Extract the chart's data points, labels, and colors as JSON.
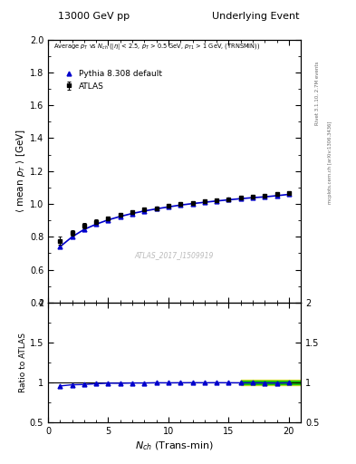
{
  "title_left": "13000 GeV pp",
  "title_right": "Underlying Event",
  "ylabel_main": "\\langle mean p_{T} \\rangle [GeV]",
  "ylabel_ratio": "Ratio to ATLAS",
  "xlabel": "N_{ch} (Trans-min)",
  "watermark": "ATLAS_2017_I1509919",
  "right_label": "mcplots.cern.ch [arXiv:1306.3436]",
  "right_label2": "Rivet 3.1.10, 2.7M events",
  "ylim_main": [
    0.4,
    2.0
  ],
  "ylim_ratio": [
    0.5,
    2.0
  ],
  "xlim": [
    0,
    21
  ],
  "atlas_x": [
    1,
    2,
    3,
    4,
    5,
    6,
    7,
    8,
    9,
    10,
    11,
    12,
    13,
    14,
    15,
    16,
    17,
    18,
    19,
    20
  ],
  "atlas_y": [
    0.775,
    0.825,
    0.868,
    0.892,
    0.912,
    0.935,
    0.95,
    0.965,
    0.975,
    0.988,
    0.998,
    1.006,
    1.015,
    1.022,
    1.03,
    1.038,
    1.044,
    1.05,
    1.058,
    1.065
  ],
  "atlas_yerr": [
    0.025,
    0.018,
    0.015,
    0.012,
    0.01,
    0.009,
    0.008,
    0.008,
    0.007,
    0.007,
    0.007,
    0.007,
    0.007,
    0.007,
    0.007,
    0.007,
    0.007,
    0.008,
    0.009,
    0.01
  ],
  "pythia_x": [
    1,
    2,
    3,
    4,
    5,
    6,
    7,
    8,
    9,
    10,
    11,
    12,
    13,
    14,
    15,
    16,
    17,
    18,
    19,
    20
  ],
  "pythia_y": [
    0.74,
    0.8,
    0.845,
    0.877,
    0.903,
    0.924,
    0.942,
    0.957,
    0.97,
    0.982,
    0.993,
    1.002,
    1.01,
    1.018,
    1.025,
    1.032,
    1.038,
    1.043,
    1.05,
    1.058
  ],
  "ratio_y": [
    0.955,
    0.97,
    0.973,
    0.983,
    0.99,
    0.989,
    0.992,
    0.992,
    0.995,
    0.994,
    0.995,
    0.996,
    0.995,
    0.996,
    0.995,
    0.994,
    0.994,
    0.993,
    0.992,
    0.994
  ],
  "atlas_color": "#000000",
  "pythia_color": "#0000cc",
  "band_green_color": "#00bb00",
  "band_yellow_color": "#dddd00",
  "legend_atlas": "ATLAS",
  "legend_pythia": "Pythia 8.308 default",
  "atlas_marker": "s",
  "pythia_marker": "^"
}
